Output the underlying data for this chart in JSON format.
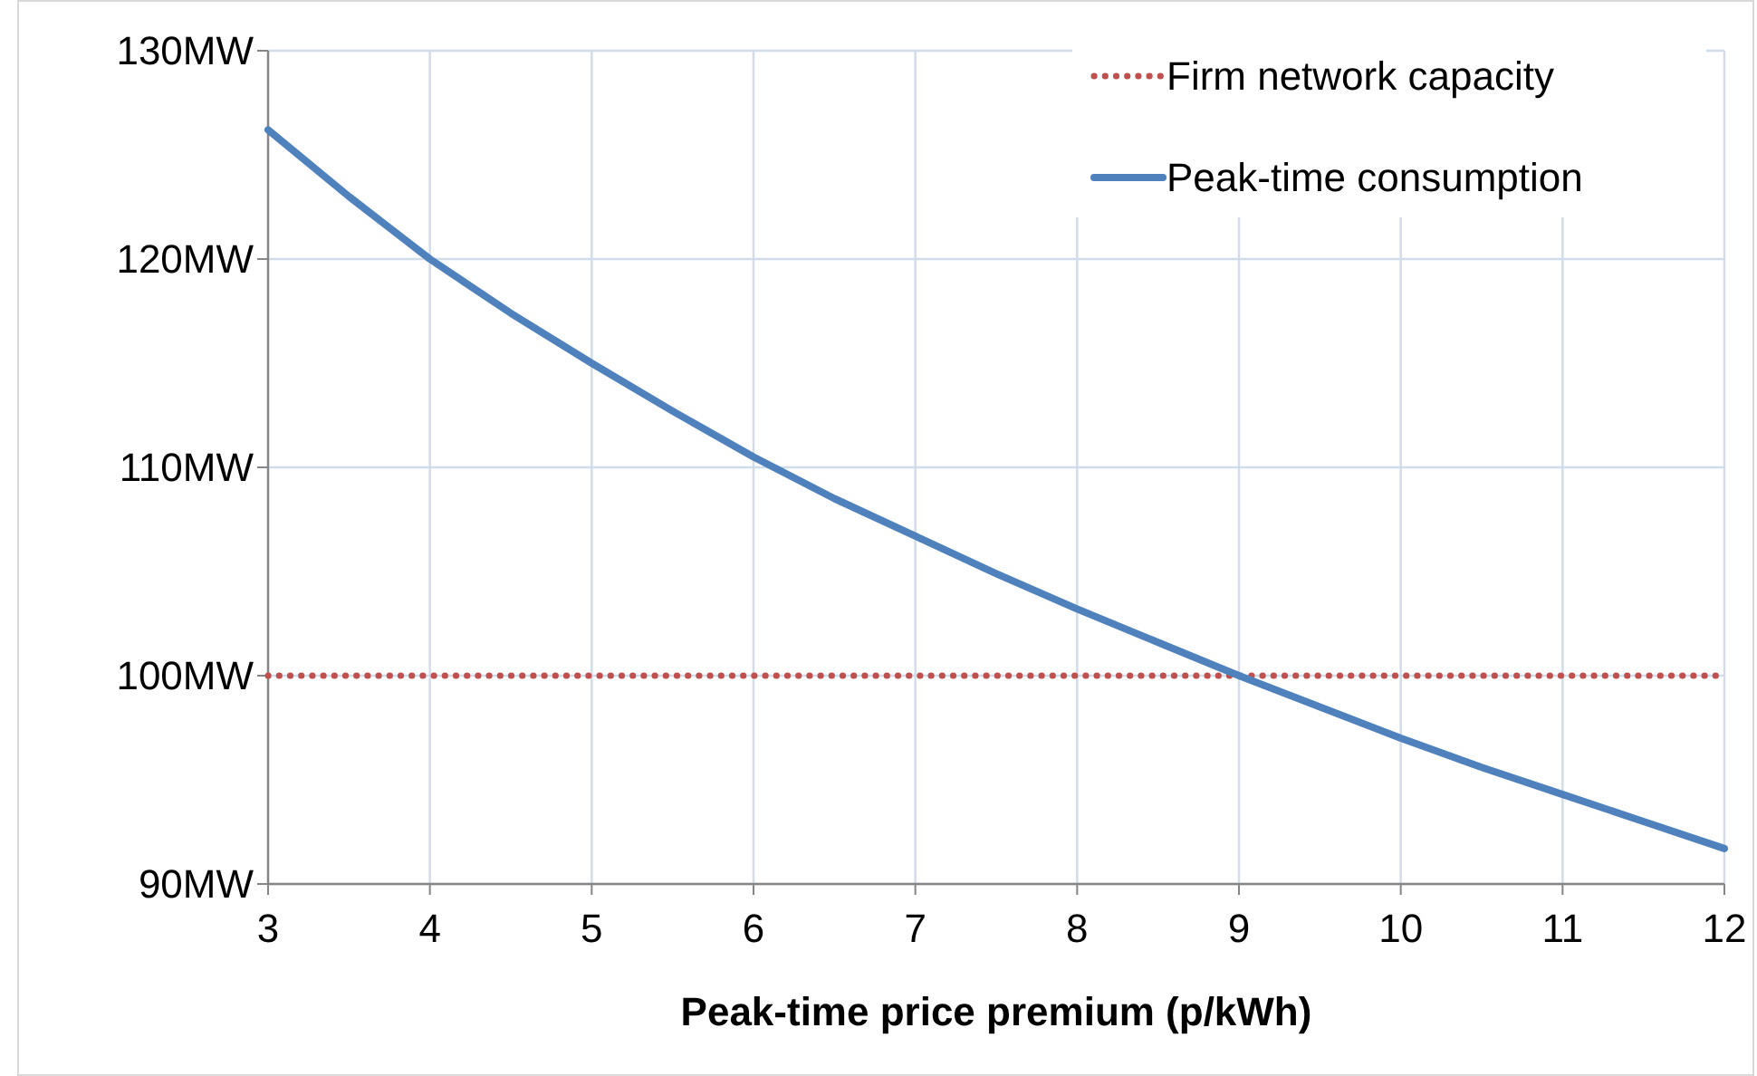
{
  "chart_data": {
    "type": "line",
    "xlabel": "Peak-time price premium (p/kWh)",
    "x": [
      3,
      3.5,
      4,
      4.5,
      5,
      5.5,
      6,
      6.5,
      7,
      7.5,
      8,
      8.5,
      9,
      9.5,
      10,
      10.5,
      11,
      11.5,
      12
    ],
    "series": [
      {
        "name": "Firm network capacity",
        "color": "#c0504d",
        "line_style": "dotted",
        "x": [
          3,
          12
        ],
        "values": [
          100,
          100
        ]
      },
      {
        "name": "Peak-time consumption",
        "color": "#4f81bd",
        "line_style": "solid",
        "values": [
          126.2,
          123,
          120,
          117.4,
          115,
          112.7,
          110.5,
          108.5,
          106.7,
          104.9,
          103.2,
          101.6,
          100,
          98.5,
          97,
          95.6,
          94.3,
          93,
          91.7
        ]
      }
    ],
    "xlim": [
      3,
      12
    ],
    "xticks": [
      3,
      4,
      5,
      6,
      7,
      8,
      9,
      10,
      11,
      12
    ],
    "ylim": [
      90,
      130
    ],
    "yticks": [
      {
        "value": 90,
        "label": "90MW"
      },
      {
        "value": 100,
        "label": "100MW"
      },
      {
        "value": 110,
        "label": "110MW"
      },
      {
        "value": 120,
        "label": "120MW"
      },
      {
        "value": 130,
        "label": "130MW"
      }
    ],
    "grid": true,
    "legend": "top right",
    "marker": "none"
  }
}
